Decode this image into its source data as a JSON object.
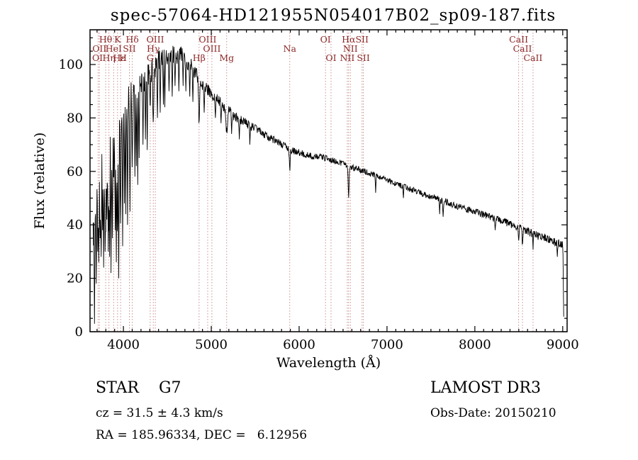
{
  "title": "spec-57064-HD121955N054017B02_sp09-187.fits",
  "footer": {
    "class_line": "STAR    G7",
    "cz_line": "cz = 31.5 ± 4.3 km/s",
    "radec_line": "RA = 185.96334, DEC =   6.12956",
    "survey": "LAMOST DR3",
    "obsdate_line": "Obs-Date: 20150210"
  },
  "colors": {
    "background": "#ffffff",
    "spectrum": "#000000",
    "frame": "#000000",
    "marker_line": "#c88f8f",
    "marker_label": "#8b2727",
    "text": "#000000"
  },
  "chart_data": {
    "type": "line",
    "title": "spec-57064-HD121955N054017B02_sp09-187.fits",
    "xlabel": "Wavelength (Å)",
    "ylabel": "Flux (relative)",
    "xlim": [
      3620,
      9050
    ],
    "ylim": [
      0,
      113
    ],
    "xticks": [
      4000,
      5000,
      6000,
      7000,
      8000,
      9000
    ],
    "yticks": [
      0,
      20,
      40,
      60,
      80,
      100
    ],
    "x_minor_step": 100,
    "y_minor_step": 5,
    "grid": false,
    "legend": "none",
    "continuum": [
      [
        3655,
        38
      ],
      [
        3680,
        52
      ],
      [
        3700,
        56
      ],
      [
        3720,
        55
      ],
      [
        3740,
        57
      ],
      [
        3760,
        58
      ],
      [
        3780,
        60
      ],
      [
        3800,
        63
      ],
      [
        3820,
        65
      ],
      [
        3840,
        67
      ],
      [
        3860,
        70
      ],
      [
        3880,
        72
      ],
      [
        3900,
        73
      ],
      [
        3920,
        74
      ],
      [
        3950,
        76
      ],
      [
        3980,
        78
      ],
      [
        4000,
        80
      ],
      [
        4030,
        84
      ],
      [
        4060,
        86
      ],
      [
        4090,
        87
      ],
      [
        4120,
        89
      ],
      [
        4150,
        91
      ],
      [
        4180,
        92
      ],
      [
        4210,
        94
      ],
      [
        4240,
        95
      ],
      [
        4270,
        96
      ],
      [
        4300,
        98
      ],
      [
        4330,
        99
      ],
      [
        4360,
        99
      ],
      [
        4400,
        101
      ],
      [
        4440,
        102
      ],
      [
        4480,
        103
      ],
      [
        4520,
        103
      ],
      [
        4560,
        104
      ],
      [
        4600,
        103
      ],
      [
        4640,
        104
      ],
      [
        4680,
        103
      ],
      [
        4720,
        101
      ],
      [
        4760,
        100
      ],
      [
        4800,
        98
      ],
      [
        4830,
        96
      ],
      [
        4860,
        94
      ],
      [
        4900,
        92
      ],
      [
        4940,
        91
      ],
      [
        4980,
        90
      ],
      [
        5020,
        88
      ],
      [
        5060,
        87
      ],
      [
        5100,
        86
      ],
      [
        5150,
        84
      ],
      [
        5200,
        83
      ],
      [
        5250,
        81
      ],
      [
        5300,
        80
      ],
      [
        5350,
        79
      ],
      [
        5400,
        78
      ],
      [
        5450,
        77
      ],
      [
        5500,
        76
      ],
      [
        5550,
        75
      ],
      [
        5600,
        74
      ],
      [
        5650,
        73
      ],
      [
        5700,
        72
      ],
      [
        5750,
        71
      ],
      [
        5800,
        70
      ],
      [
        5850,
        69
      ],
      [
        5900,
        68
      ],
      [
        5950,
        67.5
      ],
      [
        6000,
        67
      ],
      [
        6050,
        66.5
      ],
      [
        6100,
        66
      ],
      [
        6150,
        65.7
      ],
      [
        6200,
        65.4
      ],
      [
        6250,
        65.2
      ],
      [
        6300,
        65
      ],
      [
        6350,
        64.5
      ],
      [
        6400,
        64
      ],
      [
        6450,
        63.5
      ],
      [
        6500,
        63
      ],
      [
        6550,
        62
      ],
      [
        6600,
        61.5
      ],
      [
        6650,
        61
      ],
      [
        6700,
        60.5
      ],
      [
        6750,
        60
      ],
      [
        6800,
        59.2
      ],
      [
        6850,
        58.6
      ],
      [
        6900,
        58
      ],
      [
        6950,
        57.5
      ],
      [
        7000,
        57
      ],
      [
        7050,
        56
      ],
      [
        7100,
        55.5
      ],
      [
        7150,
        54.8
      ],
      [
        7200,
        54.2
      ],
      [
        7250,
        53.6
      ],
      [
        7300,
        53
      ],
      [
        7350,
        52.2
      ],
      [
        7400,
        51.6
      ],
      [
        7450,
        51
      ],
      [
        7500,
        50.5
      ],
      [
        7550,
        50
      ],
      [
        7600,
        49.4
      ],
      [
        7650,
        48.8
      ],
      [
        7700,
        48.2
      ],
      [
        7750,
        47.6
      ],
      [
        7800,
        47
      ],
      [
        7850,
        46.4
      ],
      [
        7900,
        45.8
      ],
      [
        7950,
        45.4
      ],
      [
        8000,
        45
      ],
      [
        8050,
        44.4
      ],
      [
        8100,
        43.8
      ],
      [
        8150,
        43.2
      ],
      [
        8200,
        42.6
      ],
      [
        8250,
        42
      ],
      [
        8300,
        41.5
      ],
      [
        8350,
        41
      ],
      [
        8400,
        40.4
      ],
      [
        8450,
        39.7
      ],
      [
        8500,
        39
      ],
      [
        8550,
        38.2
      ],
      [
        8600,
        37.5
      ],
      [
        8650,
        36.8
      ],
      [
        8700,
        36.2
      ],
      [
        8750,
        35.6
      ],
      [
        8800,
        35
      ],
      [
        8850,
        34.2
      ],
      [
        8900,
        33.6
      ],
      [
        8950,
        33
      ],
      [
        9000,
        32.4
      ],
      [
        9004,
        30
      ],
      [
        9008,
        14
      ],
      [
        9012,
        3
      ]
    ],
    "noise_profile": [
      [
        3655,
        13
      ],
      [
        3750,
        12
      ],
      [
        3850,
        11
      ],
      [
        3950,
        10
      ],
      [
        4050,
        8
      ],
      [
        4150,
        6
      ],
      [
        4250,
        5
      ],
      [
        4400,
        4
      ],
      [
        4600,
        3.2
      ],
      [
        4800,
        2.8
      ],
      [
        5000,
        2.2
      ],
      [
        5300,
        1.8
      ],
      [
        5600,
        1.5
      ],
      [
        6000,
        1.3
      ],
      [
        6500,
        1.1
      ],
      [
        7000,
        1.1
      ],
      [
        7500,
        1.2
      ],
      [
        8000,
        1.3
      ],
      [
        8500,
        1.5
      ],
      [
        9000,
        1.7
      ]
    ],
    "absorption_lines": [
      [
        3727,
        10,
        3
      ],
      [
        3798,
        22,
        3.5
      ],
      [
        3835,
        24,
        3.5
      ],
      [
        3889,
        24,
        3.5
      ],
      [
        3933,
        32,
        5
      ],
      [
        3968,
        30,
        5
      ],
      [
        4068,
        12,
        3
      ],
      [
        4101,
        24,
        5
      ],
      [
        4305,
        12,
        7
      ],
      [
        4340,
        22,
        5
      ],
      [
        4861,
        17,
        5
      ],
      [
        5175,
        9,
        9
      ],
      [
        5893,
        8,
        5
      ],
      [
        6563,
        12,
        5
      ],
      [
        8498,
        5,
        4
      ],
      [
        8542,
        6,
        4
      ],
      [
        8662,
        5,
        4
      ]
    ],
    "spikes": [
      [
        3672,
        3
      ],
      [
        3690,
        18
      ],
      [
        3705,
        30
      ],
      [
        3718,
        26
      ],
      [
        3733,
        35
      ],
      [
        3745,
        28
      ],
      [
        3762,
        38
      ],
      [
        3775,
        24
      ],
      [
        3790,
        30
      ],
      [
        3812,
        42
      ],
      [
        3826,
        30
      ],
      [
        3843,
        28
      ],
      [
        3858,
        22
      ],
      [
        3873,
        35
      ],
      [
        3905,
        38
      ],
      [
        3918,
        26
      ],
      [
        3947,
        20
      ],
      [
        3990,
        32
      ],
      [
        4010,
        48
      ],
      [
        4026,
        44
      ],
      [
        4046,
        40
      ],
      [
        4076,
        45
      ],
      [
        4130,
        58
      ],
      [
        4145,
        62
      ],
      [
        4163,
        55
      ],
      [
        4180,
        65
      ],
      [
        4222,
        70
      ],
      [
        4250,
        72
      ],
      [
        4272,
        68
      ],
      [
        4385,
        80
      ],
      [
        4420,
        82
      ],
      [
        4455,
        85
      ],
      [
        4472,
        84
      ],
      [
        4520,
        90
      ],
      [
        4555,
        88
      ],
      [
        4585,
        92
      ],
      [
        4630,
        90
      ],
      [
        4680,
        92
      ],
      [
        4712,
        90
      ],
      [
        4755,
        88
      ],
      [
        4790,
        86
      ],
      [
        4920,
        82
      ],
      [
        5045,
        80
      ],
      [
        5110,
        78
      ],
      [
        5230,
        74
      ],
      [
        5320,
        72
      ],
      [
        5440,
        70
      ],
      [
        6870,
        52
      ],
      [
        7185,
        50
      ],
      [
        7600,
        44
      ],
      [
        7640,
        43
      ],
      [
        8230,
        38
      ],
      [
        8940,
        28
      ]
    ],
    "marker_wavelengths": [
      3712,
      3727,
      3798,
      3835,
      3889,
      3933,
      3968,
      4068,
      4101,
      4305,
      4340,
      4363,
      4861,
      4959,
      5007,
      5175,
      5893,
      6300,
      6363,
      6548,
      6563,
      6583,
      6716,
      6731,
      8498,
      8542,
      8662
    ],
    "line_labels": [
      {
        "wl": 3705,
        "row": 3,
        "text": "OI"
      },
      {
        "wl": 3727,
        "row": 2,
        "text": "OII"
      },
      {
        "wl": 3798,
        "row": 1,
        "text": "Hθ"
      },
      {
        "wl": 3835,
        "row": 3,
        "text": "Hη"
      },
      {
        "wl": 3889,
        "row": 2,
        "text": "HeI"
      },
      {
        "wl": 3933,
        "row": 1,
        "text": "K"
      },
      {
        "wl": 3952,
        "row": 3,
        "text": "Hε"
      },
      {
        "wl": 3995,
        "row": 3,
        "text": "H"
      },
      {
        "wl": 4068,
        "row": 2,
        "text": "SII"
      },
      {
        "wl": 4101,
        "row": 1,
        "text": "Hδ"
      },
      {
        "wl": 4305,
        "row": 3,
        "text": "G"
      },
      {
        "wl": 4340,
        "row": 2,
        "text": "Hγ"
      },
      {
        "wl": 4363,
        "row": 1,
        "text": "OIII"
      },
      {
        "wl": 4861,
        "row": 3,
        "text": "Hβ"
      },
      {
        "wl": 4959,
        "row": 1,
        "text": "OIII"
      },
      {
        "wl": 5007,
        "row": 2,
        "text": "OIII"
      },
      {
        "wl": 5175,
        "row": 3,
        "text": "Mg"
      },
      {
        "wl": 5893,
        "row": 2,
        "text": "Na"
      },
      {
        "wl": 6300,
        "row": 1,
        "text": "OI"
      },
      {
        "wl": 6363,
        "row": 3,
        "text": "OI"
      },
      {
        "wl": 6548,
        "row": 3,
        "text": "NII"
      },
      {
        "wl": 6563,
        "row": 1,
        "text": "Hα"
      },
      {
        "wl": 6583,
        "row": 2,
        "text": "NII"
      },
      {
        "wl": 6716,
        "row": 1,
        "text": "SII"
      },
      {
        "wl": 6731,
        "row": 3,
        "text": "SII"
      },
      {
        "wl": 8498,
        "row": 1,
        "text": "CaII"
      },
      {
        "wl": 8542,
        "row": 2,
        "text": "CaII"
      },
      {
        "wl": 8662,
        "row": 3,
        "text": "CaII"
      }
    ]
  }
}
